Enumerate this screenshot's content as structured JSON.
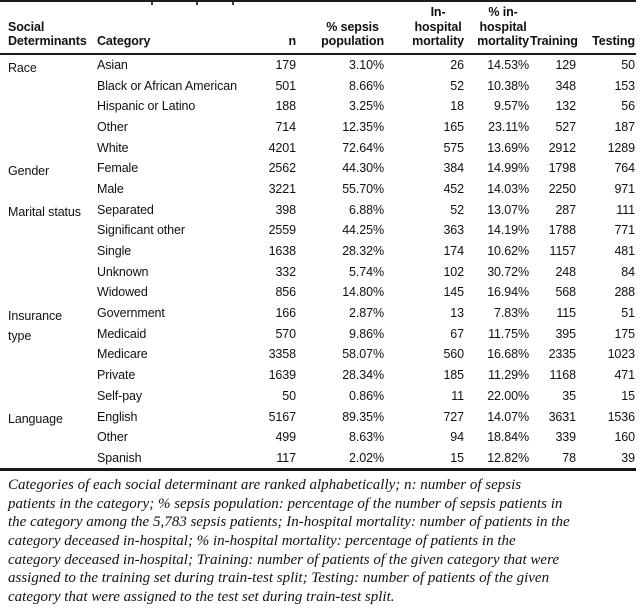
{
  "table": {
    "columns": [
      {
        "key": "social",
        "label": "Social\nDeterminants"
      },
      {
        "key": "category",
        "label": "Category"
      },
      {
        "key": "n",
        "label": "n"
      },
      {
        "key": "pct_sepsis",
        "label": "% sepsis\npopulation"
      },
      {
        "key": "in_hospital",
        "label": "In-\nhospital\nmortality"
      },
      {
        "key": "pct_in_hospital",
        "label": "% in-\nhospital\nmortality"
      },
      {
        "key": "training",
        "label": "Training"
      },
      {
        "key": "testing",
        "label": "Testing"
      }
    ],
    "groups": [
      {
        "label": "Race",
        "rows": [
          [
            "Asian",
            "179",
            "3.10%",
            "26",
            "14.53%",
            "129",
            "50"
          ],
          [
            "Black or African American",
            "501",
            "8.66%",
            "52",
            "10.38%",
            "348",
            "153"
          ],
          [
            "Hispanic or Latino",
            "188",
            "3.25%",
            "18",
            "9.57%",
            "132",
            "56"
          ],
          [
            "Other",
            "714",
            "12.35%",
            "165",
            "23.11%",
            "527",
            "187"
          ],
          [
            "White",
            "4201",
            "72.64%",
            "575",
            "13.69%",
            "2912",
            "1289"
          ]
        ]
      },
      {
        "label": "Gender",
        "rows": [
          [
            "Female",
            "2562",
            "44.30%",
            "384",
            "14.99%",
            "1798",
            "764"
          ],
          [
            "Male",
            "3221",
            "55.70%",
            "452",
            "14.03%",
            "2250",
            "971"
          ]
        ]
      },
      {
        "label": "Marital status",
        "rows": [
          [
            "Separated",
            "398",
            "6.88%",
            "52",
            "13.07%",
            "287",
            "111"
          ],
          [
            "Significant other",
            "2559",
            "44.25%",
            "363",
            "14.19%",
            "1788",
            "771"
          ],
          [
            "Single",
            "1638",
            "28.32%",
            "174",
            "10.62%",
            "1157",
            "481"
          ],
          [
            "Unknown",
            "332",
            "5.74%",
            "102",
            "30.72%",
            "248",
            "84"
          ],
          [
            "Widowed",
            "856",
            "14.80%",
            "145",
            "16.94%",
            "568",
            "288"
          ]
        ]
      },
      {
        "label": "Insurance\ntype",
        "rows": [
          [
            "Government",
            "166",
            "2.87%",
            "13",
            "7.83%",
            "115",
            "51"
          ],
          [
            "Medicaid",
            "570",
            "9.86%",
            "67",
            "11.75%",
            "395",
            "175"
          ],
          [
            "Medicare",
            "3358",
            "58.07%",
            "560",
            "16.68%",
            "2335",
            "1023"
          ],
          [
            "Private",
            "1639",
            "28.34%",
            "185",
            "11.29%",
            "1168",
            "471"
          ],
          [
            "Self-pay",
            "50",
            "0.86%",
            "11",
            "22.00%",
            "35",
            "15"
          ]
        ]
      },
      {
        "label": "Language",
        "rows": [
          [
            "English",
            "5167",
            "89.35%",
            "727",
            "14.07%",
            "3631",
            "1536"
          ],
          [
            "Other",
            "499",
            "8.63%",
            "94",
            "18.84%",
            "339",
            "160"
          ],
          [
            "Spanish",
            "117",
            "2.02%",
            "15",
            "12.82%",
            "78",
            "39"
          ]
        ]
      }
    ]
  },
  "footnote": {
    "lines": [
      "Categories of each social determinant are ranked alphabetically; n: number of sepsis",
      "patients in the category; % sepsis population: percentage of the number of sepsis patients in",
      "the category among the 5,783 sepsis patients; In-hospital mortality: number of patients in the",
      "category deceased in-hospital; % in-hospital mortality: percentage of patients in the",
      "category deceased in-hospital; Training: number of patients of the given category that were",
      "assigned to the training set during train-test split; Testing: number of patients of the given",
      "category that were assigned to the test set during train-test split."
    ]
  }
}
